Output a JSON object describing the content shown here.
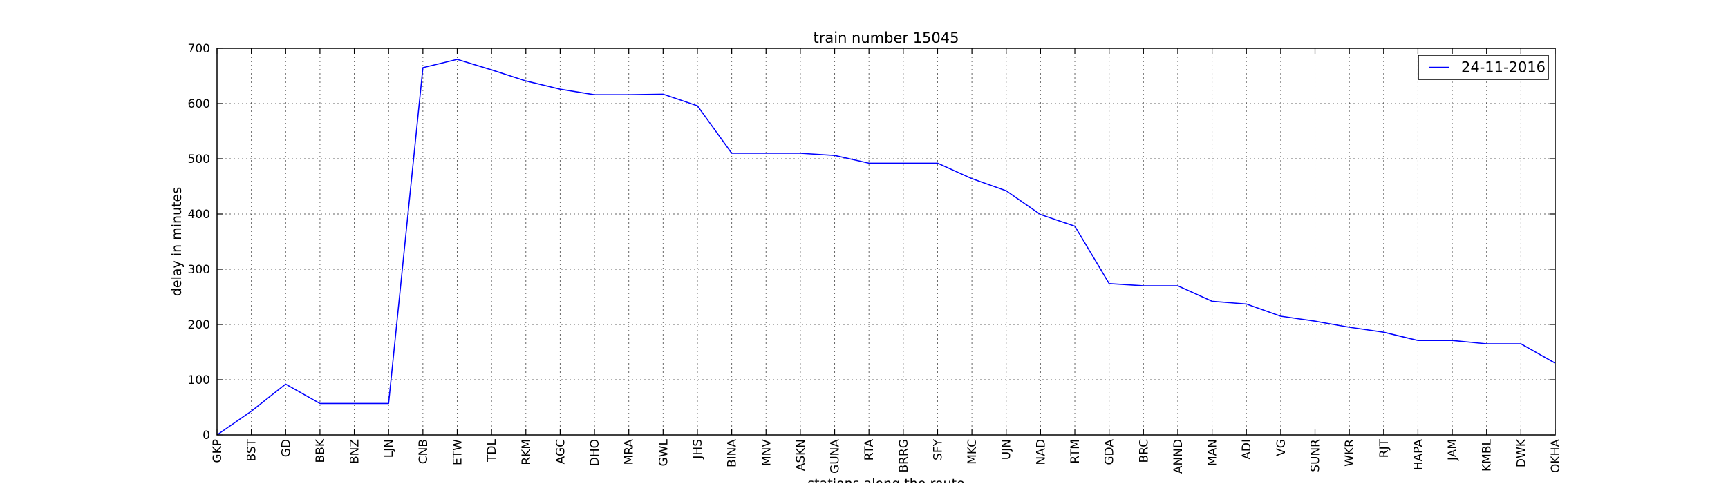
{
  "chart_data": {
    "type": "line",
    "title": "train number 15045",
    "xlabel": "stations along the route",
    "ylabel": "delay in minutes",
    "ylim": [
      0,
      700
    ],
    "yticks": [
      0,
      100,
      200,
      300,
      400,
      500,
      600,
      700
    ],
    "grid": true,
    "legend_position": "top-right",
    "categories": [
      "GKP",
      "BST",
      "GD",
      "BBK",
      "BNZ",
      "LJN",
      "CNB",
      "ETW",
      "TDL",
      "RKM",
      "AGC",
      "DHO",
      "MRA",
      "GWL",
      "JHS",
      "BINA",
      "MNV",
      "ASKN",
      "GUNA",
      "RTA",
      "BRRG",
      "SFY",
      "MKC",
      "UJN",
      "NAD",
      "RTM",
      "GDA",
      "BRC",
      "ANND",
      "MAN",
      "ADI",
      "VG",
      "SUNR",
      "WKR",
      "RJT",
      "HAPA",
      "JAM",
      "KMBL",
      "DWK",
      "OKHA"
    ],
    "series": [
      {
        "name": "24-11-2016",
        "color": "#0000ff",
        "values": [
          0,
          43,
          92,
          57,
          57,
          57,
          665,
          680,
          661,
          641,
          626,
          616,
          616,
          617,
          596,
          510,
          510,
          510,
          506,
          492,
          492,
          492,
          464,
          442,
          399,
          378,
          274,
          270,
          270,
          242,
          237,
          215,
          206,
          195,
          186,
          171,
          171,
          165,
          165,
          130
        ]
      }
    ]
  }
}
